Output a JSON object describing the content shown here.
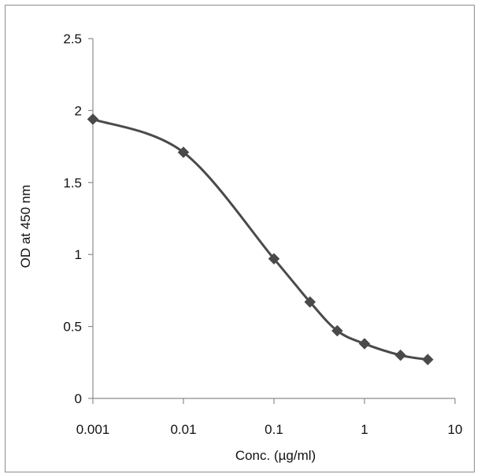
{
  "chart_data": {
    "type": "line",
    "title": "",
    "xlabel": "Conc. (µg/ml)",
    "ylabel": "OD at 450 nm",
    "x_scale": "log",
    "xlim": [
      0.001,
      10
    ],
    "ylim": [
      0,
      2.5
    ],
    "x_ticks": [
      0.001,
      0.01,
      0.1,
      1,
      10
    ],
    "x_tick_labels": [
      "0.001",
      "0.01",
      "0.1",
      "1",
      "10"
    ],
    "y_ticks": [
      0,
      0.5,
      1,
      1.5,
      2,
      2.5
    ],
    "y_tick_labels": [
      "0",
      "0.5",
      "1",
      "1.5",
      "2",
      "2.5"
    ],
    "grid": false,
    "legend": false,
    "series": [
      {
        "x": [
          0.001,
          0.01,
          0.1,
          0.25,
          0.5,
          1,
          2.5,
          5
        ],
        "y": [
          1.94,
          1.71,
          0.97,
          0.67,
          0.47,
          0.38,
          0.3,
          0.27
        ],
        "marker": "diamond",
        "smooth": true,
        "color": "#4a4a4a"
      }
    ]
  }
}
